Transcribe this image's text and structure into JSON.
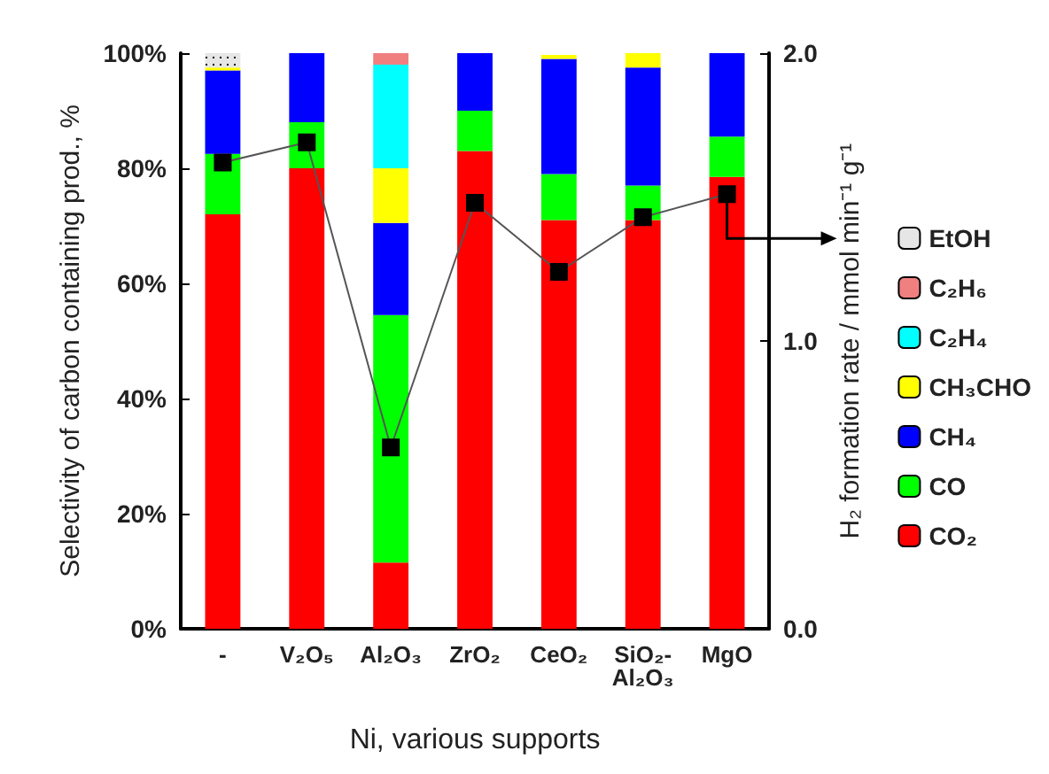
{
  "chart_data": {
    "type": "bar",
    "stacked": true,
    "xlabel": "Ni, various supports",
    "ylabel": "Selectivity of carbon containing prod., %",
    "y2label": "H₂ formation rate / mmol min⁻¹ g⁻¹",
    "categories": [
      "-",
      "V₂O₅",
      "Al₂O₃",
      "ZrO₂",
      "CeO₂",
      "SiO₂-\nAl₂O₃",
      "MgO"
    ],
    "series": [
      {
        "name": "CO₂",
        "color": "#ff0000",
        "values": [
          72,
          80,
          11.5,
          83,
          71,
          71,
          78.5
        ]
      },
      {
        "name": "CO",
        "color": "#00ff00",
        "values": [
          10.5,
          8,
          43,
          7,
          8,
          6,
          7
        ]
      },
      {
        "name": "CH₄",
        "color": "#0000ff",
        "values": [
          14.5,
          12,
          16,
          10,
          20,
          20.5,
          14.5
        ]
      },
      {
        "name": "CH₃CHO",
        "color": "#ffff00",
        "values": [
          0.5,
          null,
          9.5,
          null,
          0.7,
          2.5,
          null
        ]
      },
      {
        "name": "C₂H₄",
        "color": "#00ffff",
        "values": [
          null,
          null,
          18,
          null,
          null,
          null,
          null
        ]
      },
      {
        "name": "C₂H₆",
        "color": "#f08080",
        "values": [
          null,
          null,
          2,
          null,
          null,
          null,
          null
        ]
      },
      {
        "name": "EtOH",
        "color": "#e6e6e6",
        "values": [
          2.5,
          null,
          null,
          null,
          null,
          null,
          null
        ]
      },
      {
        "type": "line",
        "axis": "y2",
        "color": "#000000",
        "values": [
          1.62,
          1.69,
          0.63,
          1.48,
          1.24,
          1.43,
          1.51
        ]
      }
    ],
    "ylim": [
      0,
      100
    ],
    "yticks": [
      {
        "value": 0,
        "label": "0%"
      },
      {
        "value": 20,
        "label": "20%"
      },
      {
        "value": 40,
        "label": "40%"
      },
      {
        "value": 60,
        "label": "60%"
      },
      {
        "value": 80,
        "label": "80%"
      },
      {
        "value": 100,
        "label": "100%"
      }
    ],
    "y2lim": [
      0,
      2
    ],
    "y2ticks": [
      {
        "value": 0,
        "label": "0.0"
      },
      {
        "value": 1,
        "label": "1.0"
      },
      {
        "value": 2,
        "label": "2.0"
      }
    ],
    "marker": "square",
    "legend": "right",
    "grid": false
  }
}
